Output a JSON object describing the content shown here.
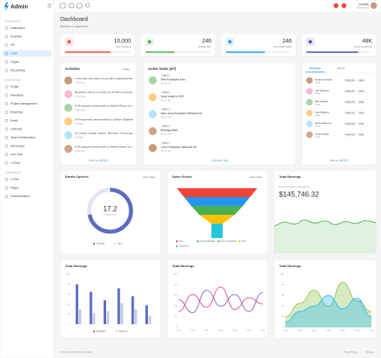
{
  "sidebar": {
    "brand": "Admin",
    "active": "CRM",
    "sections": [
      {
        "label": "DASHBOARDS",
        "items": [
          "Dashboard",
          "Analytics",
          "HR",
          "CRM",
          "Crypto",
          "Accounting"
        ]
      },
      {
        "label": "APPLICATIONS",
        "items": [
          "Profile",
          "Newsfeed",
          "Project Management",
          "Roadmap",
          "Email",
          "Calendar",
          "Team Collaboration",
          "Messenger",
          "Live Chat",
          "Contact"
        ]
      },
      {
        "label": "COMPONENTS",
        "items": [
          "UI Kits",
          "Pages",
          "Documentation"
        ]
      }
    ]
  },
  "topbar": {
    "user": "Charlotte",
    "role": "Super Admin"
  },
  "header": {
    "title": "Dashboard",
    "subtitle": "Welcome to dashboard"
  },
  "stats": [
    {
      "value": "10,000",
      "label": "New Contacts",
      "color": "#f44336",
      "progress": 70
    },
    {
      "value": "246",
      "label": "Emails Sent",
      "color": "#4caf50",
      "progress": 45
    },
    {
      "value": "246",
      "label": "New Deals Made",
      "color": "#2196f3",
      "progress": 60
    },
    {
      "value": "48K",
      "label": "Revenue Earned",
      "color": "#3f51b5",
      "progress": 80
    }
  ],
  "activities": {
    "title": "Activities",
    "filter": "Today",
    "footer": "VIEW ALL REPORT",
    "items": [
      {
        "text": "A new task with Zetyx Group with undisclosed fee",
        "time": "2 hours ago"
      },
      {
        "text": "Business call to my team at 10 AM tomorrow",
        "time": "3 hours ago"
      },
      {
        "text": "A Proposal presented to Albert Rose Co.",
        "time": "5 hours ago"
      },
      {
        "text": "A Proposal presented to Zetyx Digital",
        "time": "Yesterday"
      },
      {
        "text": "A new task with Zetyx Group",
        "time": "Yesterday"
      },
      {
        "text": "A Proposal presented to Albert Rose Co.",
        "time": "2 days ago"
      }
    ]
  },
  "tasks": {
    "title": "Active Tasks (4/7)",
    "footer": "+ ADD NEW TASK",
    "items": [
      {
        "tag": "NEW UI",
        "title": "New Employee Intro",
        "date": "Due 10 Jan"
      },
      {
        "tag": "NEW UI",
        "title": "Send email to CEO",
        "date": "Due 11 Jan"
      },
      {
        "tag": "NEW UI",
        "title": "New Joing Employee Welcome kit",
        "date": "Due 12 Jan"
      },
      {
        "tag": "NEW UI",
        "title": "Birthday Wish",
        "date": "Due 14 Jan"
      },
      {
        "tag": "NEW UI",
        "title": "John Freelancer Welcome Kit",
        "date": "Due 16 Jan"
      }
    ]
  },
  "birthdays": {
    "tabs": [
      "Birthdays",
      "Award"
    ],
    "send": "SEND GIFT",
    "wish": "WISH",
    "footer": "VIEW ALL REPORT",
    "people": [
      {
        "name": "Deborah Clarke",
        "sub": "Today"
      },
      {
        "name": "Joh Newman",
        "sub": "Today"
      },
      {
        "name": "Rita Hughes",
        "sub": "Today"
      },
      {
        "name": "Kyle Bellamy",
        "sub": "Today"
      },
      {
        "name": "Damn Osborne",
        "sub": "Today"
      },
      {
        "name": "Grace Bowie",
        "sub": "Today"
      }
    ]
  },
  "emails": {
    "type": "donut",
    "title": "Emails Opened",
    "filter": "Last 7 days",
    "center": "17.2",
    "center_label": "Total opened",
    "series": [
      {
        "name": "Opened",
        "color": "#5c6bc0",
        "value": 72
      },
      {
        "name": "Sent",
        "color": "#e3e6f3",
        "value": 28
      }
    ]
  },
  "funnel": {
    "type": "funnel",
    "title": "Sales Funnel",
    "filter": "Last 7 days",
    "stages": [
      {
        "name": "New",
        "color": "#f44336",
        "value": 100
      },
      {
        "name": "Demo Scheduled",
        "color": "#2196f3",
        "value": 82
      },
      {
        "name": "Demo Completed",
        "color": "#4caf50",
        "value": 64
      },
      {
        "name": "Deal",
        "color": "#ffc107",
        "value": 44
      },
      {
        "name": "Untouched",
        "color": "#26c6da",
        "value": 14
      }
    ]
  },
  "earnings": {
    "type": "area",
    "title": "Total Earnings",
    "label": "TOTAL EARNINGS THIS MONTH",
    "value": "$145,746.32",
    "color": "#4caf50",
    "ylim": [
      0,
      100
    ],
    "values": [
      55,
      62,
      58,
      66,
      60,
      64,
      57,
      63,
      59,
      65,
      61
    ]
  },
  "bars": {
    "type": "bar",
    "title": "Total Earnings",
    "ylim": [
      0,
      100
    ],
    "yticks": [
      0,
      20,
      40,
      60,
      80,
      100
    ],
    "series": [
      {
        "name": "Weekdays",
        "color": "#5c6bc0",
        "values": [
          80,
          65,
          48,
          72,
          56,
          38
        ]
      },
      {
        "name": "Weekend",
        "color": "#c5cae9",
        "values": [
          30,
          22,
          26,
          42,
          30,
          16
        ]
      }
    ]
  },
  "lines": {
    "type": "line",
    "title": "Total Earnings",
    "ylim": [
      0,
      100
    ],
    "yticks": [
      0,
      20,
      40,
      60,
      80,
      100
    ],
    "categories": [
      "1 Jan",
      "2 Jan",
      "3 Jan",
      "4 Jan",
      "5 Jan",
      "6 Jan",
      "7 Jan"
    ],
    "series": [
      {
        "name": "Sales",
        "color": "#ec407a",
        "values": [
          30,
          62,
          38,
          76,
          34,
          56,
          44
        ]
      },
      {
        "name": "Revenue",
        "color": "#7e57c2",
        "values": [
          52,
          28,
          70,
          40,
          62,
          30,
          66
        ]
      }
    ]
  },
  "areas": {
    "type": "area",
    "title": "Total Earnings",
    "ylim": [
      0,
      100
    ],
    "yticks": [
      0,
      20,
      40,
      60,
      80,
      100
    ],
    "categories": [
      "1 Jan",
      "2 Jan",
      "3 Jan",
      "4 Jan",
      "5 Jan",
      "6 Jan",
      "7 Jan"
    ],
    "series": [
      {
        "name": "Income",
        "color": "#8bc34a",
        "values": [
          20,
          45,
          70,
          40,
          85,
          50,
          30
        ]
      },
      {
        "name": "Expense",
        "color": "#29b6f6",
        "values": [
          10,
          30,
          40,
          60,
          35,
          55,
          20
        ]
      }
    ]
  },
  "footer": {
    "text": "Admin site crafted by Admin team",
    "links": [
      "Privacy Policy",
      "Sitemap"
    ]
  }
}
